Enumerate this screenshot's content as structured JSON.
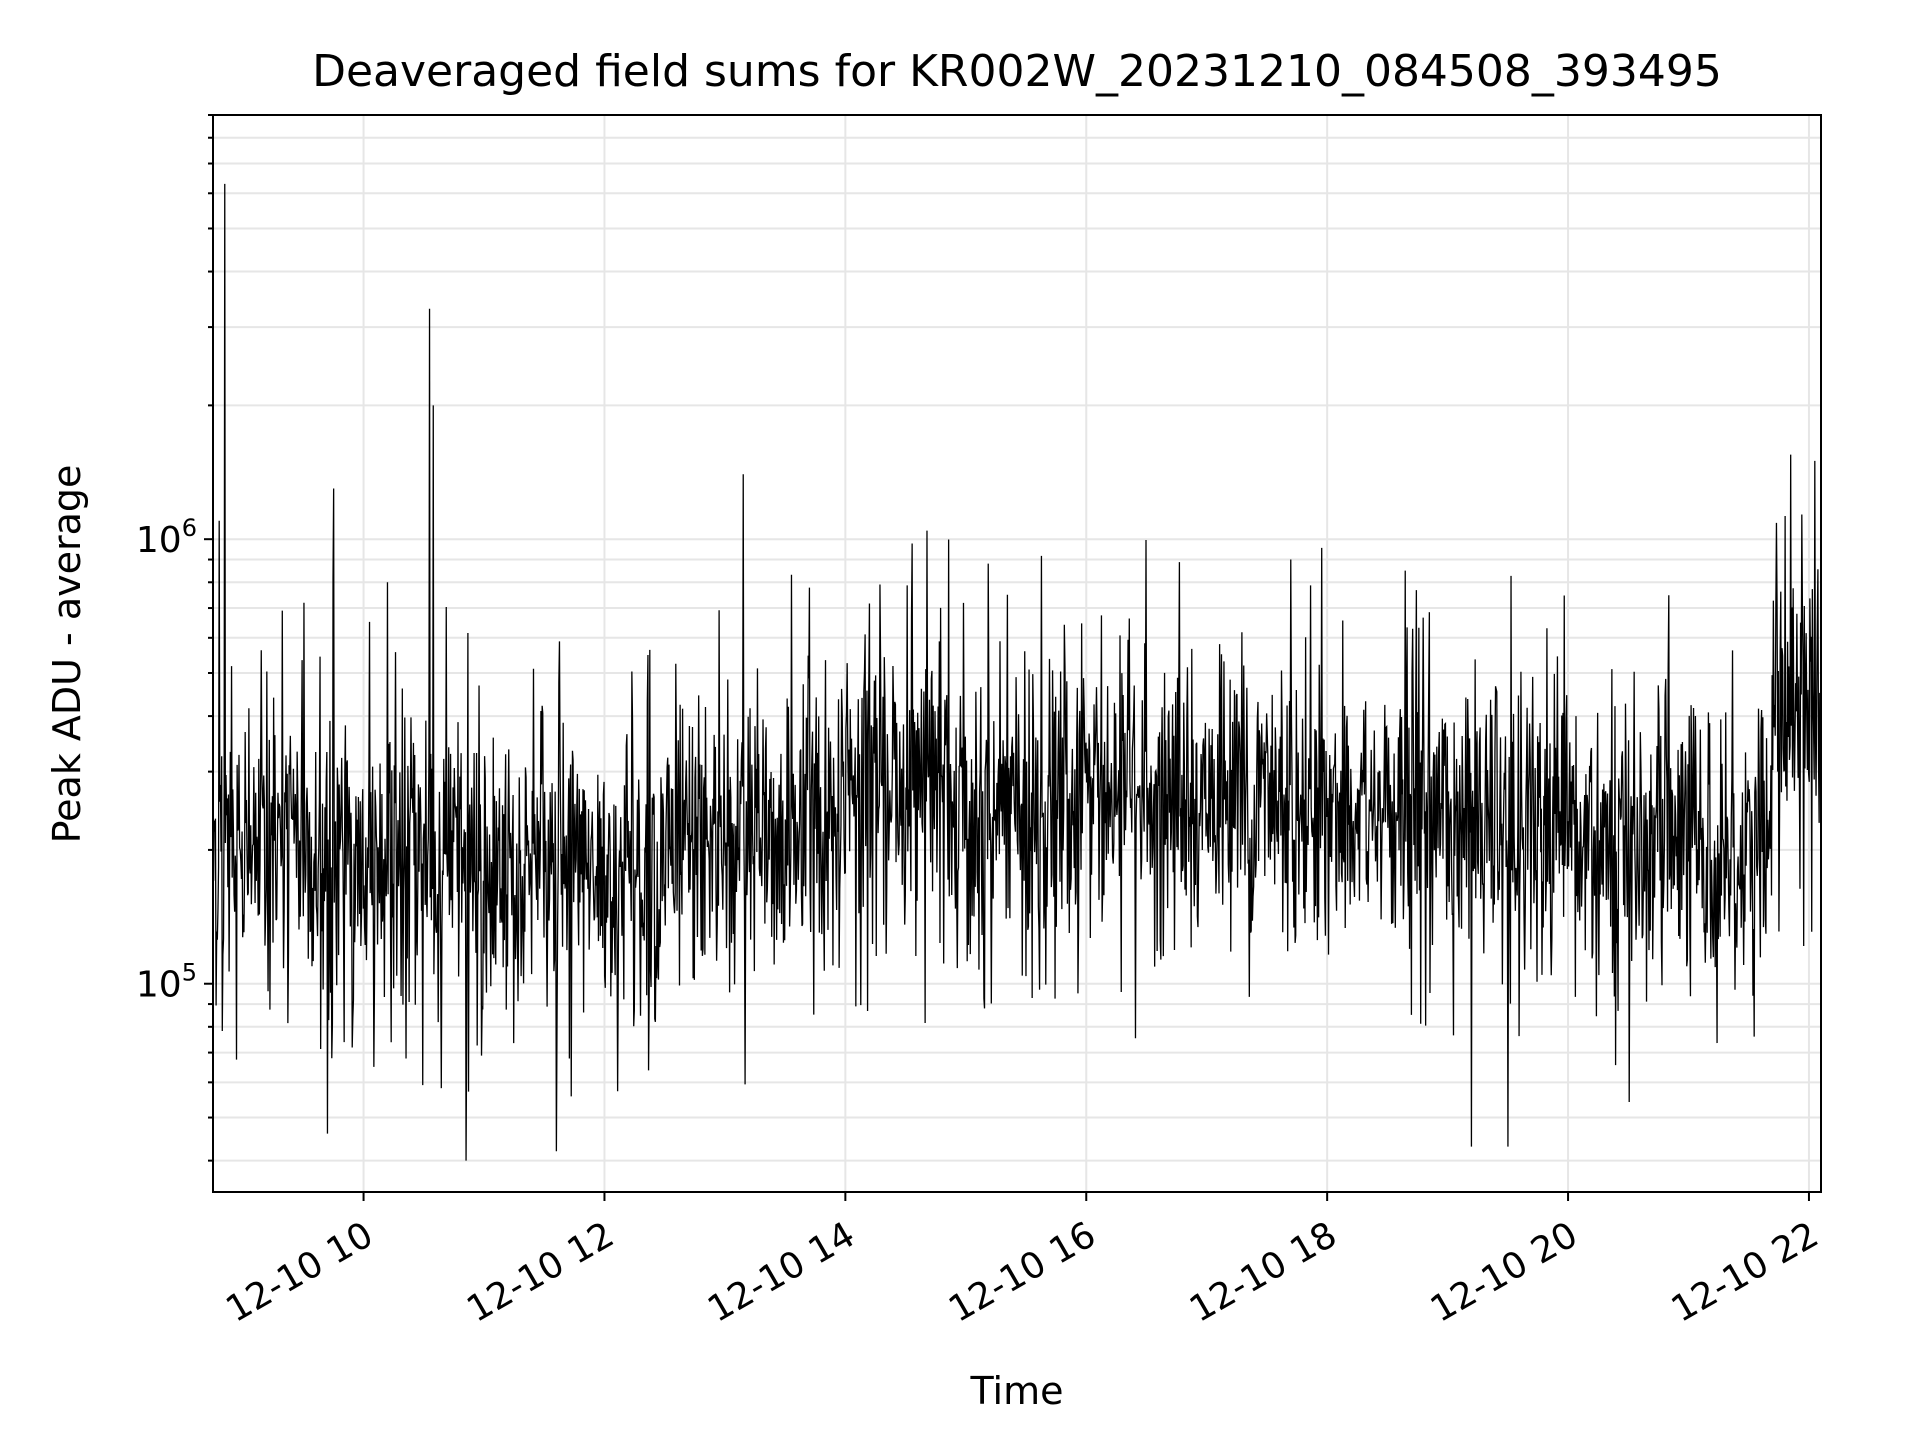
{
  "chart_data": {
    "type": "line",
    "title": "Deaveraged field sums for KR002W_20231210_084508_393495",
    "xlabel": "Time",
    "ylabel": "Peak ADU - average",
    "yscale": "log",
    "ylim": [
      34000,
      9000000
    ],
    "xlim_hours": [
      8.75,
      22.1
    ],
    "grid": true,
    "legend": "none",
    "colors": {
      "line": "#000000",
      "grid": "#e6e6e6",
      "axes": "#000000"
    },
    "xticks": [
      {
        "hour": 10,
        "label": "12-10 10"
      },
      {
        "hour": 12,
        "label": "12-10 12"
      },
      {
        "hour": 14,
        "label": "12-10 14"
      },
      {
        "hour": 16,
        "label": "12-10 16"
      },
      {
        "hour": 18,
        "label": "12-10 18"
      },
      {
        "hour": 20,
        "label": "12-10 20"
      },
      {
        "hour": 22,
        "label": "12-10 22"
      }
    ],
    "yticks": [
      {
        "value": 100000,
        "base": "10",
        "exp": "5"
      },
      {
        "value": 1000000,
        "base": "10",
        "exp": "6"
      }
    ],
    "segments": [
      {
        "start": 8.75,
        "end": 9.5,
        "median": 200000
      },
      {
        "start": 9.5,
        "end": 11.0,
        "median": 185000
      },
      {
        "start": 11.0,
        "end": 12.5,
        "median": 175000
      },
      {
        "start": 12.5,
        "end": 14.0,
        "median": 210000
      },
      {
        "start": 14.0,
        "end": 15.0,
        "median": 270000
      },
      {
        "start": 15.0,
        "end": 16.0,
        "median": 240000
      },
      {
        "start": 16.0,
        "end": 18.0,
        "median": 260000
      },
      {
        "start": 18.0,
        "end": 19.5,
        "median": 240000
      },
      {
        "start": 19.5,
        "end": 21.7,
        "median": 205000
      },
      {
        "start": 21.7,
        "end": 22.1,
        "median": 430000
      }
    ],
    "spikes": [
      {
        "hour": 8.85,
        "value": 6300000
      },
      {
        "hour": 8.8,
        "value": 1100000
      },
      {
        "hour": 9.75,
        "value": 1300000
      },
      {
        "hour": 10.2,
        "value": 800000
      },
      {
        "hour": 10.55,
        "value": 3300000
      },
      {
        "hour": 10.58,
        "value": 2000000
      },
      {
        "hour": 13.15,
        "value": 1400000
      },
      {
        "hour": 17.7,
        "value": 900000
      },
      {
        "hour": 18.65,
        "value": 850000
      },
      {
        "hour": 21.85,
        "value": 1550000
      },
      {
        "hour": 22.05,
        "value": 1500000
      },
      {
        "hour": 10.85,
        "value": 40000
      },
      {
        "hour": 11.6,
        "value": 42000
      },
      {
        "hour": 19.2,
        "value": 43000
      },
      {
        "hour": 19.5,
        "value": 43000
      },
      {
        "hour": 9.7,
        "value": 46000
      }
    ]
  }
}
